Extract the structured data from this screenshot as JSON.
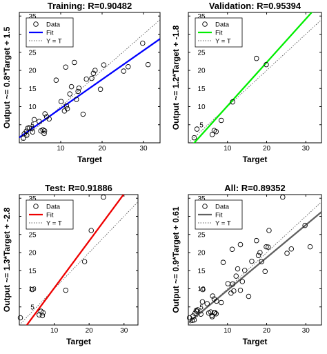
{
  "chart_data": [
    {
      "type": "scatter",
      "title": "Training: R=0.90482",
      "xlabel": "Target",
      "ylabel": "Output ~= 0.8*Target + 1.5",
      "xlim": [
        0,
        34
      ],
      "ylim": [
        0,
        36
      ],
      "xticks": [
        "10",
        "20",
        "30"
      ],
      "yticks": [
        "5",
        "10",
        "15",
        "20",
        "25",
        "30",
        "35"
      ],
      "legend": [
        "Data",
        "Fit",
        "Y = T"
      ],
      "legend_position": "top-left",
      "fit_color": "#0000ff",
      "fit": {
        "slope": 0.8,
        "intercept": 1.5
      },
      "points": [
        [
          1.0,
          1.3
        ],
        [
          1.2,
          2.5
        ],
        [
          1.7,
          3.2
        ],
        [
          1.8,
          2.1
        ],
        [
          2.0,
          4.0
        ],
        [
          2.4,
          4.2
        ],
        [
          3.0,
          4.0
        ],
        [
          3.2,
          3.0
        ],
        [
          3.6,
          6.4
        ],
        [
          4.8,
          5.9
        ],
        [
          5.2,
          3.3
        ],
        [
          5.7,
          3.6
        ],
        [
          6.0,
          2.6
        ],
        [
          6.1,
          3.3
        ],
        [
          6.2,
          8.0
        ],
        [
          6.6,
          7.2
        ],
        [
          7.2,
          6.6
        ],
        [
          8.9,
          17.3
        ],
        [
          10.1,
          11.4
        ],
        [
          10.9,
          8.8
        ],
        [
          11.4,
          10.2
        ],
        [
          11.6,
          9.4
        ],
        [
          11.2,
          20.9
        ],
        [
          12.2,
          13.5
        ],
        [
          12.6,
          15.5
        ],
        [
          13.3,
          22.2
        ],
        [
          13.8,
          12.0
        ],
        [
          14.2,
          14.2
        ],
        [
          14.4,
          15.1
        ],
        [
          15.4,
          7.9
        ],
        [
          16.2,
          17.6
        ],
        [
          17.5,
          17.8
        ],
        [
          17.9,
          19.2
        ],
        [
          18.3,
          20.0
        ],
        [
          19.6,
          14.8
        ],
        [
          20.4,
          21.5
        ],
        [
          25.2,
          19.8
        ],
        [
          26.3,
          21.0
        ],
        [
          29.8,
          27.5
        ],
        [
          31.1,
          21.6
        ]
      ]
    },
    {
      "type": "scatter",
      "title": "Validation: R=0.95394",
      "xlabel": "Target",
      "ylabel": "Output ~= 1.2*Target + -1.8",
      "xlim": [
        0,
        34
      ],
      "ylim": [
        0,
        36
      ],
      "xticks": [
        "10",
        "20",
        "30"
      ],
      "yticks": [
        "5",
        "10",
        "15",
        "20",
        "25",
        "30",
        "35"
      ],
      "legend": [
        "Data",
        "Fit",
        "Y = T"
      ],
      "legend_position": "top-left",
      "fit_color": "#00ee00",
      "fit": {
        "slope": 1.2,
        "intercept": -1.8
      },
      "points": [
        [
          1.5,
          1.4
        ],
        [
          2.2,
          3.8
        ],
        [
          6.1,
          2.3
        ],
        [
          6.6,
          3.4
        ],
        [
          7.1,
          3.1
        ],
        [
          8.4,
          6.2
        ],
        [
          11.3,
          11.3
        ],
        [
          17.4,
          23.3
        ],
        [
          19.9,
          21.6
        ]
      ]
    },
    {
      "type": "scatter",
      "title": "Test: R=0.91886",
      "xlabel": "Target",
      "ylabel": "Output ~= 1.3*Target + -2.8",
      "xlim": [
        0,
        34
      ],
      "ylim": [
        0,
        36
      ],
      "xticks": [
        "10",
        "20",
        "30"
      ],
      "yticks": [
        "5",
        "10",
        "15",
        "20",
        "25",
        "30",
        "35"
      ],
      "legend": [
        "Data",
        "Fit",
        "Y = T"
      ],
      "legend_position": "top-left",
      "fit_color": "#ee0000",
      "fit": {
        "slope": 1.3,
        "intercept": -2.8
      },
      "points": [
        [
          0.3,
          2.0
        ],
        [
          3.7,
          9.8
        ],
        [
          5.7,
          2.8
        ],
        [
          6.2,
          3.8
        ],
        [
          6.6,
          2.6
        ],
        [
          6.8,
          3.4
        ],
        [
          13.3,
          9.6
        ],
        [
          18.7,
          17.5
        ],
        [
          20.6,
          26.1
        ],
        [
          24.1,
          35.3
        ]
      ]
    },
    {
      "type": "scatter",
      "title": "All: R=0.89352",
      "xlabel": "Target",
      "ylabel": "Output ~= 0.9*Target + 0.61",
      "xlim": [
        0,
        34
      ],
      "ylim": [
        0,
        36
      ],
      "xticks": [
        "10",
        "20",
        "30"
      ],
      "yticks": [
        "5",
        "10",
        "15",
        "20",
        "25",
        "30",
        "35"
      ],
      "legend": [
        "Data",
        "Fit",
        "Y = T"
      ],
      "legend_position": "top-left",
      "fit_color": "#606060",
      "fit": {
        "slope": 0.9,
        "intercept": 0.61
      },
      "points": [
        [
          0.3,
          2.0
        ],
        [
          1.0,
          1.3
        ],
        [
          1.2,
          2.5
        ],
        [
          1.5,
          1.4
        ],
        [
          1.7,
          3.2
        ],
        [
          2.0,
          4.0
        ],
        [
          2.2,
          3.8
        ],
        [
          2.4,
          4.2
        ],
        [
          3.2,
          3.0
        ],
        [
          3.6,
          6.4
        ],
        [
          3.7,
          9.8
        ],
        [
          4.8,
          5.9
        ],
        [
          5.2,
          3.3
        ],
        [
          5.7,
          3.6
        ],
        [
          6.0,
          2.6
        ],
        [
          6.1,
          2.3
        ],
        [
          6.2,
          8.0
        ],
        [
          6.6,
          7.2
        ],
        [
          6.6,
          3.4
        ],
        [
          6.8,
          3.4
        ],
        [
          7.1,
          3.1
        ],
        [
          7.2,
          6.6
        ],
        [
          8.4,
          6.2
        ],
        [
          8.9,
          17.3
        ],
        [
          10.1,
          11.4
        ],
        [
          10.9,
          8.8
        ],
        [
          11.2,
          20.9
        ],
        [
          11.3,
          11.3
        ],
        [
          11.6,
          9.4
        ],
        [
          12.2,
          13.5
        ],
        [
          12.6,
          15.5
        ],
        [
          13.3,
          9.6
        ],
        [
          13.3,
          22.2
        ],
        [
          13.8,
          12.0
        ],
        [
          14.4,
          15.1
        ],
        [
          15.4,
          7.9
        ],
        [
          16.2,
          17.6
        ],
        [
          17.4,
          23.3
        ],
        [
          17.9,
          19.2
        ],
        [
          18.3,
          20.0
        ],
        [
          18.7,
          17.5
        ],
        [
          19.6,
          14.8
        ],
        [
          19.9,
          21.6
        ],
        [
          20.4,
          21.5
        ],
        [
          20.6,
          26.1
        ],
        [
          24.1,
          35.3
        ],
        [
          25.2,
          19.8
        ],
        [
          26.3,
          21.0
        ],
        [
          29.8,
          27.5
        ],
        [
          31.1,
          21.6
        ]
      ]
    }
  ]
}
